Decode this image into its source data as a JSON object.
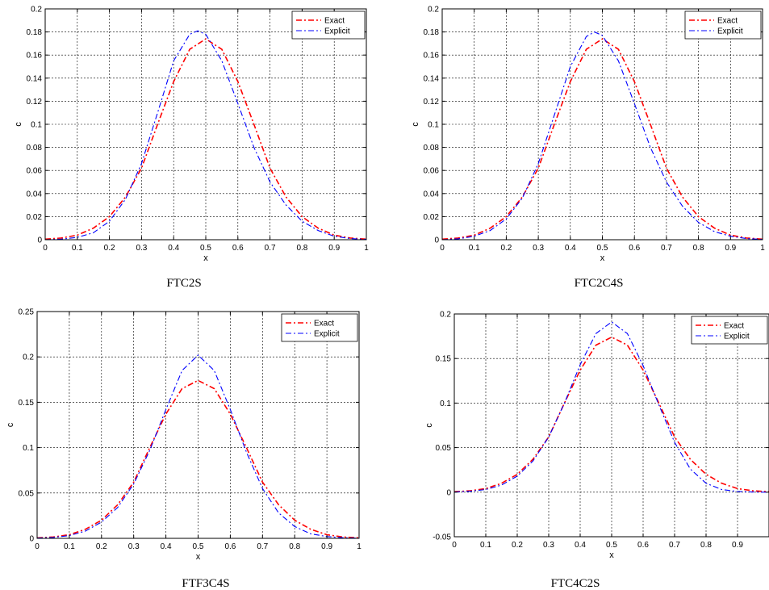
{
  "chart_data": [
    {
      "type": "line",
      "title": "FTC2S",
      "xlabel": "x",
      "ylabel": "c",
      "xlim": [
        0,
        1
      ],
      "ylim": [
        0,
        0.2
      ],
      "grid": true,
      "legend_position": "top-right",
      "xticks": [
        0,
        0.1,
        0.2,
        0.3,
        0.4,
        0.5,
        0.6,
        0.7,
        0.8,
        0.9,
        1
      ],
      "xtick_labels": [
        "0",
        "0.1",
        "0.2",
        "0.3",
        "0.4",
        "0.5",
        "0.6",
        "0.7",
        "0.8",
        "0.9",
        "1"
      ],
      "yticks": [
        0,
        0.02,
        0.04,
        0.06,
        0.08,
        0.1,
        0.12,
        0.14,
        0.16,
        0.18,
        0.2
      ],
      "ytick_labels": [
        "0",
        "0.02",
        "0.04",
        "0.06",
        "0.08",
        "0.1",
        "0.12",
        "0.14",
        "0.16",
        "0.18",
        "0.2"
      ],
      "series": [
        {
          "name": "Exact",
          "color": "#ff0000",
          "style": "dashdot",
          "x": [
            0,
            0.05,
            0.1,
            0.15,
            0.2,
            0.25,
            0.3,
            0.35,
            0.4,
            0.45,
            0.5,
            0.55,
            0.6,
            0.65,
            0.7,
            0.75,
            0.8,
            0.85,
            0.9,
            0.95,
            1
          ],
          "y": [
            0.0005,
            0.0015,
            0.004,
            0.01,
            0.02,
            0.037,
            0.062,
            0.1,
            0.137,
            0.165,
            0.174,
            0.165,
            0.137,
            0.1,
            0.062,
            0.037,
            0.02,
            0.01,
            0.004,
            0.0015,
            0.0005
          ]
        },
        {
          "name": "Explicit",
          "color": "#0000ff",
          "style": "dashdot",
          "x": [
            0,
            0.05,
            0.1,
            0.15,
            0.2,
            0.25,
            0.3,
            0.35,
            0.4,
            0.45,
            0.475,
            0.5,
            0.55,
            0.6,
            0.65,
            0.7,
            0.75,
            0.8,
            0.85,
            0.9,
            0.95,
            1
          ],
          "y": [
            0,
            0.0005,
            0.002,
            0.006,
            0.016,
            0.035,
            0.066,
            0.11,
            0.155,
            0.178,
            0.181,
            0.178,
            0.155,
            0.118,
            0.08,
            0.05,
            0.03,
            0.016,
            0.008,
            0.003,
            0.001,
            0.0003
          ]
        }
      ]
    },
    {
      "type": "line",
      "title": "FTC2C4S",
      "xlabel": "x",
      "ylabel": "c",
      "xlim": [
        0,
        1
      ],
      "ylim": [
        0,
        0.2
      ],
      "grid": true,
      "legend_position": "top-right",
      "xticks": [
        0,
        0.1,
        0.2,
        0.3,
        0.4,
        0.5,
        0.6,
        0.7,
        0.8,
        0.9,
        1
      ],
      "xtick_labels": [
        "0",
        "0.1",
        "0.2",
        "0.3",
        "0.4",
        "0.5",
        "0.6",
        "0.7",
        "0.8",
        "0.9",
        "1"
      ],
      "yticks": [
        0,
        0.02,
        0.04,
        0.06,
        0.08,
        0.1,
        0.12,
        0.14,
        0.16,
        0.18,
        0.2
      ],
      "ytick_labels": [
        "0",
        "0.02",
        "0.04",
        "0.06",
        "0.08",
        "0.1",
        "0.12",
        "0.14",
        "0.16",
        "0.18",
        "0.2"
      ],
      "series": [
        {
          "name": "Exact",
          "color": "#ff0000",
          "style": "dashdot",
          "x": [
            0,
            0.05,
            0.1,
            0.15,
            0.2,
            0.25,
            0.3,
            0.35,
            0.4,
            0.45,
            0.5,
            0.55,
            0.6,
            0.65,
            0.7,
            0.75,
            0.8,
            0.85,
            0.9,
            0.95,
            1
          ],
          "y": [
            0.0005,
            0.0015,
            0.004,
            0.01,
            0.02,
            0.037,
            0.062,
            0.1,
            0.137,
            0.165,
            0.174,
            0.165,
            0.137,
            0.1,
            0.062,
            0.037,
            0.02,
            0.01,
            0.004,
            0.0015,
            0.0005
          ]
        },
        {
          "name": "Explicit",
          "color": "#0000ff",
          "style": "dashdot",
          "x": [
            0,
            0.05,
            0.1,
            0.15,
            0.2,
            0.25,
            0.3,
            0.35,
            0.4,
            0.45,
            0.475,
            0.5,
            0.55,
            0.6,
            0.65,
            0.7,
            0.75,
            0.8,
            0.85,
            0.9,
            0.95,
            1
          ],
          "y": [
            0,
            0.0008,
            0.003,
            0.008,
            0.018,
            0.036,
            0.066,
            0.108,
            0.15,
            0.176,
            0.18,
            0.177,
            0.155,
            0.118,
            0.08,
            0.05,
            0.029,
            0.015,
            0.007,
            0.003,
            0.001,
            0.0003
          ]
        }
      ]
    },
    {
      "type": "line",
      "title": "FTF3C4S",
      "xlabel": "x",
      "ylabel": "c",
      "xlim": [
        0,
        1
      ],
      "ylim": [
        0,
        0.25
      ],
      "grid": true,
      "legend_position": "top-right",
      "xticks": [
        0,
        0.1,
        0.2,
        0.3,
        0.4,
        0.5,
        0.6,
        0.7,
        0.8,
        0.9,
        1
      ],
      "xtick_labels": [
        "0",
        "0.1",
        "0.2",
        "0.3",
        "0.4",
        "0.5",
        "0.6",
        "0.7",
        "0.8",
        "0.9",
        "1"
      ],
      "yticks": [
        0,
        0.05,
        0.1,
        0.15,
        0.2,
        0.25
      ],
      "ytick_labels": [
        "0",
        "0.05",
        "0.1",
        "0.15",
        "0.2",
        "0.25"
      ],
      "series": [
        {
          "name": "Exact",
          "color": "#ff0000",
          "style": "dashdot",
          "x": [
            0,
            0.05,
            0.1,
            0.15,
            0.2,
            0.25,
            0.3,
            0.35,
            0.4,
            0.45,
            0.5,
            0.55,
            0.6,
            0.65,
            0.7,
            0.75,
            0.8,
            0.85,
            0.9,
            0.95,
            1
          ],
          "y": [
            0.0005,
            0.0015,
            0.004,
            0.01,
            0.02,
            0.037,
            0.062,
            0.1,
            0.137,
            0.165,
            0.174,
            0.165,
            0.137,
            0.1,
            0.062,
            0.037,
            0.02,
            0.01,
            0.004,
            0.0015,
            0.0005
          ]
        },
        {
          "name": "Explicit",
          "color": "#0000ff",
          "style": "dashdot",
          "x": [
            0,
            0.05,
            0.1,
            0.15,
            0.2,
            0.25,
            0.3,
            0.35,
            0.4,
            0.45,
            0.5,
            0.55,
            0.6,
            0.65,
            0.7,
            0.75,
            0.8,
            0.85,
            0.9,
            0.95,
            1
          ],
          "y": [
            0.0003,
            0.001,
            0.003,
            0.008,
            0.018,
            0.034,
            0.06,
            0.097,
            0.142,
            0.185,
            0.202,
            0.185,
            0.142,
            0.095,
            0.055,
            0.028,
            0.013,
            0.005,
            0.002,
            0.0007,
            0.0002
          ]
        }
      ]
    },
    {
      "type": "line",
      "title": "FTC4C2S",
      "xlabel": "x",
      "ylabel": "c",
      "xlim": [
        0,
        1
      ],
      "ylim": [
        -0.05,
        0.2
      ],
      "grid": true,
      "legend_position": "top-right",
      "xticks": [
        0,
        0.1,
        0.2,
        0.3,
        0.4,
        0.5,
        0.6,
        0.7,
        0.8,
        0.9
      ],
      "xtick_labels": [
        "0",
        "0.1",
        "0.2",
        "0.3",
        "0.4",
        "0.5",
        "0.6",
        "0.7",
        "0.8",
        "0.9"
      ],
      "yticks": [
        -0.05,
        0,
        0.05,
        0.1,
        0.15,
        0.2
      ],
      "ytick_labels": [
        "-0.05",
        "0",
        "0.05",
        "0.1",
        "0.15",
        "0.2"
      ],
      "series": [
        {
          "name": "Exact",
          "color": "#ff0000",
          "style": "dashdot",
          "x": [
            0,
            0.05,
            0.1,
            0.15,
            0.2,
            0.25,
            0.3,
            0.35,
            0.4,
            0.45,
            0.5,
            0.55,
            0.6,
            0.65,
            0.7,
            0.75,
            0.8,
            0.85,
            0.9,
            0.95,
            1
          ],
          "y": [
            0.0005,
            0.0015,
            0.004,
            0.01,
            0.02,
            0.037,
            0.062,
            0.1,
            0.137,
            0.165,
            0.174,
            0.165,
            0.137,
            0.1,
            0.062,
            0.037,
            0.02,
            0.01,
            0.004,
            0.0015,
            0.0005
          ]
        },
        {
          "name": "Explicit",
          "color": "#0000ff",
          "style": "dashdot",
          "x": [
            0,
            0.05,
            0.1,
            0.15,
            0.2,
            0.25,
            0.3,
            0.35,
            0.4,
            0.45,
            0.5,
            0.55,
            0.6,
            0.65,
            0.7,
            0.75,
            0.8,
            0.85,
            0.9,
            0.95,
            1
          ],
          "y": [
            0.0002,
            0.001,
            0.003,
            0.008,
            0.018,
            0.035,
            0.062,
            0.1,
            0.143,
            0.178,
            0.191,
            0.178,
            0.142,
            0.098,
            0.056,
            0.026,
            0.01,
            0.003,
            0.0008,
            0.0002,
            0
          ]
        }
      ]
    }
  ]
}
